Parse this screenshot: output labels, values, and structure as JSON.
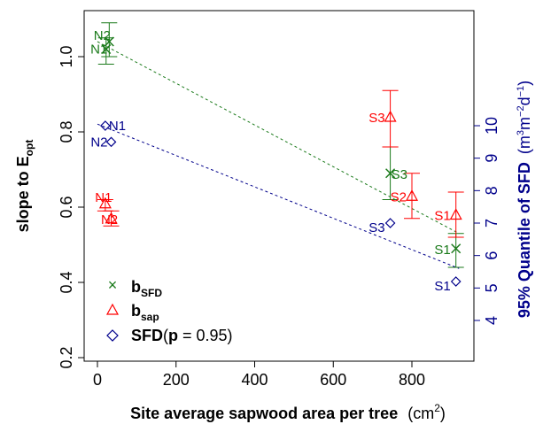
{
  "chart_data": {
    "type": "scatter",
    "title": "",
    "xlabel": {
      "main": "Site average sapwood area per tree",
      "unit": "(cm",
      "unit_sup": "2",
      "unit_end": ")"
    },
    "ylabel_left": {
      "main": "slope to E",
      "sub": "opt"
    },
    "ylabel_right": {
      "main": "95% Quantile of SFD",
      "unit": "(m",
      "sup1": "3",
      "mid": "m",
      "sup2": "−2",
      "end": "d",
      "sup3": "−1",
      "close": ")"
    },
    "xlim": [
      0,
      920
    ],
    "xticks": [
      "0",
      "200",
      "400",
      "600",
      "800"
    ],
    "ylim_left": [
      0.2,
      1.1
    ],
    "yticks_left": [
      "0.2",
      "0.4",
      "0.6",
      "0.8",
      "1.0"
    ],
    "ylim_right": [
      4,
      11
    ],
    "yticks_right": [
      "4",
      "5",
      "6",
      "7",
      "8",
      "9",
      "10"
    ],
    "grid": false,
    "legend_position": "bottom-left",
    "colors": {
      "bSFD": "#1a7a1a",
      "bsap": "#ff0000",
      "SFD": "#00008b",
      "axis": "#000000",
      "right_axis": "#00008b"
    },
    "series": [
      {
        "name": "b",
        "name_sub": "SFD",
        "key": "bSFD",
        "marker": "x",
        "points": [
          {
            "label": "N2",
            "x": 30,
            "y": 1.04,
            "err_lo": 1.0,
            "err_hi": 1.09
          },
          {
            "label": "N1",
            "x": 22,
            "y": 1.02,
            "err_lo": 0.98,
            "err_hi": 1.05
          },
          {
            "label": "S3",
            "x": 745,
            "y": 0.69,
            "err_lo": 0.62,
            "err_hi": 0.76
          },
          {
            "label": "S1",
            "x": 912,
            "y": 0.49,
            "err_lo": 0.44,
            "err_hi": 0.53
          }
        ],
        "fit": {
          "x0": 0,
          "y0": 1.04,
          "x1": 920,
          "y1": 0.53
        }
      },
      {
        "name": "b",
        "name_sub": "sap",
        "key": "bsap",
        "marker": "triangle",
        "points": [
          {
            "label": "N1",
            "x": 20,
            "y": 0.61,
            "err_lo": 0.59,
            "err_hi": 0.62
          },
          {
            "label": "N2",
            "x": 35,
            "y": 0.57,
            "err_lo": 0.55,
            "err_hi": 0.59
          },
          {
            "label": "S3",
            "x": 745,
            "y": 0.84,
            "err_lo": 0.76,
            "err_hi": 0.91
          },
          {
            "label": "S2",
            "x": 800,
            "y": 0.63,
            "err_lo": 0.57,
            "err_hi": 0.69
          },
          {
            "label": "S1",
            "x": 912,
            "y": 0.58,
            "err_lo": 0.52,
            "err_hi": 0.64
          }
        ]
      },
      {
        "name": "SFD",
        "p_label": "p",
        "p_value": " = 0.95",
        "key": "SFD",
        "marker": "diamond",
        "points": [
          {
            "label": "N1",
            "x": 20,
            "y": 10.0
          },
          {
            "label": "N2",
            "x": 35,
            "y": 9.5
          },
          {
            "label": "S3",
            "x": 745,
            "y": 7.0
          },
          {
            "label": "S1",
            "x": 912,
            "y": 5.2
          }
        ],
        "fit": {
          "x0": 0,
          "y0": 10.05,
          "x1": 920,
          "y1": 5.6
        }
      }
    ]
  }
}
